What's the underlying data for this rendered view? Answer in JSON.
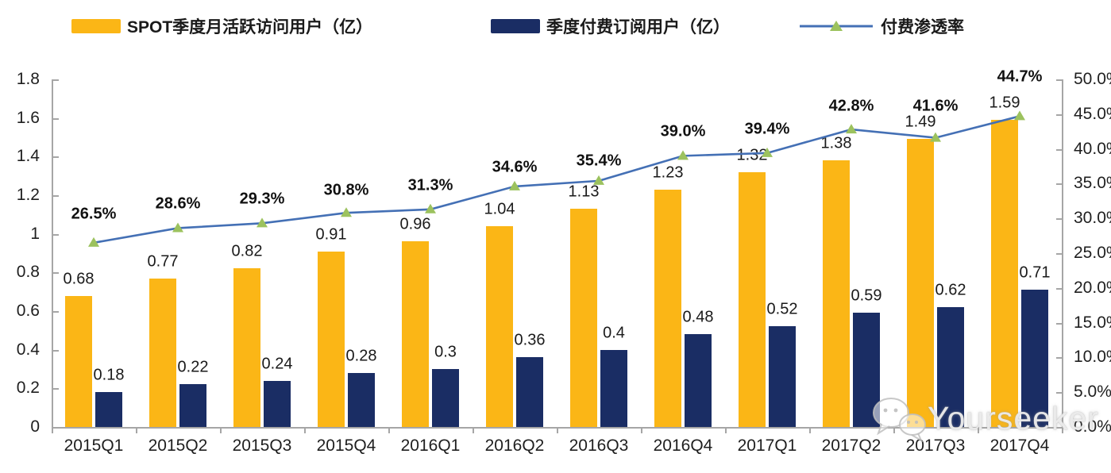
{
  "legend": [
    {
      "label": "SPOT季度月活跃访问用户（亿）",
      "type": "bar",
      "color": "#FBB616"
    },
    {
      "label": "季度付费订阅用户（亿）",
      "type": "bar",
      "color": "#1A2D64"
    },
    {
      "label": "付费渗透率",
      "type": "line",
      "color": "#4470B5",
      "marker_color": "#9CC25E"
    }
  ],
  "chart_data": {
    "type": "bar+line",
    "categories": [
      "2015Q1",
      "2015Q2",
      "2015Q3",
      "2015Q4",
      "2016Q1",
      "2016Q2",
      "2016Q3",
      "2016Q4",
      "2017Q1",
      "2017Q2",
      "2017Q3",
      "2017Q4"
    ],
    "series": [
      {
        "name": "SPOT季度月活跃访问用户（亿）",
        "type": "bar",
        "axis": "left",
        "color": "#FBB616",
        "values": [
          0.68,
          0.77,
          0.82,
          0.91,
          0.96,
          1.04,
          1.13,
          1.23,
          1.32,
          1.38,
          1.49,
          1.59
        ],
        "labels": [
          "0.68",
          "0.77",
          "0.82",
          "0.91",
          "0.96",
          "1.04",
          "1.13",
          "1.23",
          "1.32",
          "1.38",
          "1.49",
          "1.59"
        ]
      },
      {
        "name": "季度付费订阅用户（亿）",
        "type": "bar",
        "axis": "left",
        "color": "#1A2D64",
        "values": [
          0.18,
          0.22,
          0.24,
          0.28,
          0.3,
          0.36,
          0.4,
          0.48,
          0.52,
          0.59,
          0.62,
          0.71
        ],
        "labels": [
          "0.18",
          "0.22",
          "0.24",
          "0.28",
          "0.3",
          "0.36",
          "0.4",
          "0.48",
          "0.52",
          "0.59",
          "0.62",
          "0.71"
        ]
      },
      {
        "name": "付费渗透率",
        "type": "line",
        "axis": "right",
        "color": "#4470B5",
        "marker_color": "#9CC25E",
        "values": [
          26.5,
          28.6,
          29.3,
          30.8,
          31.3,
          34.6,
          35.4,
          39.0,
          39.4,
          42.8,
          41.6,
          44.7
        ],
        "labels": [
          "26.5%",
          "28.6%",
          "29.3%",
          "30.8%",
          "31.3%",
          "34.6%",
          "35.4%",
          "39.0%",
          "39.4%",
          "42.8%",
          "41.6%",
          "44.7%"
        ],
        "label_dy": [
          -36,
          -30,
          -30,
          -28,
          -30,
          -24,
          -25,
          -30,
          -30,
          -29,
          -40,
          -49
        ]
      }
    ],
    "left_axis": {
      "min": 0,
      "max": 1.8,
      "ticks": [
        "1.8",
        "1.6",
        "1.4",
        "1.2",
        "1",
        "0.8",
        "0.6",
        "0.4",
        "0.2",
        "0"
      ]
    },
    "right_axis": {
      "min": 0,
      "max": 50,
      "ticks": [
        "50.0%",
        "45.0%",
        "40.0%",
        "35.0%",
        "30.0%",
        "25.0%",
        "20.0%",
        "15.0%",
        "10.0%",
        "5.0%",
        "0.0%"
      ]
    },
    "grid": false,
    "legend_position": "top",
    "axis_color": "#A6A6A6",
    "text_color": "#1F1F1F"
  },
  "watermark": {
    "text": "Yourseeker",
    "icon": "wechat-icon"
  }
}
